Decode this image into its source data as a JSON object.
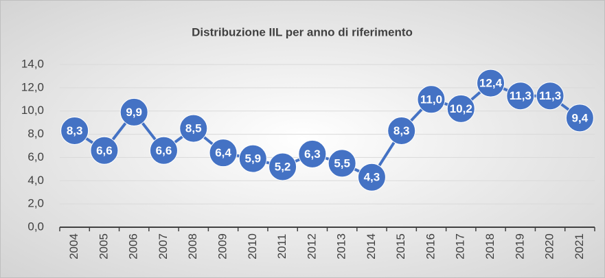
{
  "chart_data": {
    "type": "line",
    "title": "Distribuzione IIL per anno di riferimento",
    "categories": [
      "2004",
      "2005",
      "2006",
      "2007",
      "2008",
      "2009",
      "2010",
      "2011",
      "2012",
      "2013",
      "2014",
      "2015",
      "2016",
      "2017",
      "2018",
      "2019",
      "2020",
      "2021"
    ],
    "series": [
      {
        "name": "IIL",
        "color": "#4472c4",
        "values": [
          8.3,
          6.6,
          9.9,
          6.6,
          8.5,
          6.4,
          5.9,
          5.2,
          6.3,
          5.5,
          4.3,
          8.3,
          11.0,
          10.2,
          12.4,
          11.3,
          11.3,
          9.4
        ],
        "value_labels": [
          "8,3",
          "6,6",
          "9,9",
          "6,6",
          "8,5",
          "6,4",
          "5,9",
          "5,2",
          "6,3",
          "5,5",
          "4,3",
          "8,3",
          "11,0",
          "10,2",
          "12,4",
          "11,3",
          "11,3",
          "9,4"
        ]
      }
    ],
    "ylim": [
      0,
      14
    ],
    "yticks": [
      {
        "value": 0,
        "label": "0,0"
      },
      {
        "value": 2,
        "label": "2,0"
      },
      {
        "value": 4,
        "label": "4,0"
      },
      {
        "value": 6,
        "label": "6,0"
      },
      {
        "value": 8,
        "label": "8,0"
      },
      {
        "value": 10,
        "label": "10,0"
      },
      {
        "value": 12,
        "label": "12,0"
      },
      {
        "value": 14,
        "label": "14,0"
      }
    ],
    "grid": true
  }
}
